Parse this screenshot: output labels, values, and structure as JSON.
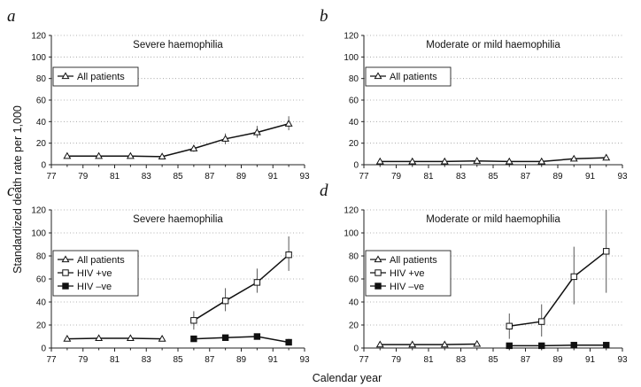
{
  "figure": {
    "ylabel": "Standardized death rate per 1,000",
    "xlabel": "Calendar year"
  },
  "chart_data": [
    {
      "panel": "a",
      "type": "line",
      "title": "Severe haemophilia",
      "xlim": [
        77,
        93
      ],
      "ylim": [
        0,
        120
      ],
      "xticks": [
        77,
        79,
        81,
        83,
        85,
        87,
        89,
        91,
        93
      ],
      "yticks": [
        0,
        20,
        40,
        60,
        80,
        100,
        120
      ],
      "grid": "horizontal dotted",
      "legend_placement": "upper-left",
      "series": [
        {
          "name": "All patients",
          "marker": "open-triangle",
          "x": [
            78,
            80,
            82,
            84,
            86,
            88,
            90,
            92
          ],
          "y": [
            8,
            8,
            8,
            7.5,
            15,
            24,
            30,
            38
          ],
          "err": [
            [
              6.5,
              9.5
            ],
            [
              6.5,
              9.5
            ],
            [
              6.5,
              9.5
            ],
            [
              6,
              9
            ],
            [
              12,
              18
            ],
            [
              19,
              29
            ],
            [
              25,
              36
            ],
            [
              32,
              45
            ]
          ]
        }
      ]
    },
    {
      "panel": "b",
      "type": "line",
      "title": "Moderate or mild haemophilia",
      "xlim": [
        77,
        93
      ],
      "ylim": [
        0,
        120
      ],
      "xticks": [
        77,
        79,
        81,
        83,
        85,
        87,
        89,
        91,
        93
      ],
      "yticks": [
        0,
        20,
        40,
        60,
        80,
        100,
        120
      ],
      "grid": "horizontal dotted",
      "legend_placement": "upper-left",
      "series": [
        {
          "name": "All patients",
          "marker": "open-triangle",
          "x": [
            78,
            80,
            82,
            84,
            86,
            88,
            90,
            92
          ],
          "y": [
            3,
            3,
            3,
            3.5,
            3,
            3,
            5.5,
            6.5
          ],
          "err": [
            [
              1.5,
              4.5
            ],
            [
              1.5,
              4.5
            ],
            [
              1.5,
              4.5
            ],
            [
              2,
              5
            ],
            [
              1.5,
              4.5
            ],
            [
              1.5,
              4.5
            ],
            [
              3.5,
              8
            ],
            [
              4,
              9.5
            ]
          ]
        }
      ]
    },
    {
      "panel": "c",
      "type": "line",
      "title": "Severe haemophilia",
      "xlim": [
        77,
        93
      ],
      "ylim": [
        0,
        120
      ],
      "xticks": [
        77,
        79,
        81,
        83,
        85,
        87,
        89,
        91,
        93
      ],
      "yticks": [
        0,
        20,
        40,
        60,
        80,
        100,
        120
      ],
      "grid": "horizontal dotted",
      "legend_placement": "middle-left",
      "series": [
        {
          "name": "All patients",
          "marker": "open-triangle",
          "x": [
            78,
            80,
            82,
            84
          ],
          "y": [
            8,
            8.5,
            8.5,
            8
          ],
          "err": [
            [
              6.5,
              9.5
            ],
            [
              7,
              10
            ],
            [
              7,
              10
            ],
            [
              6.5,
              9.5
            ]
          ]
        },
        {
          "name": "HIV +ve",
          "marker": "open-square",
          "x": [
            86,
            88,
            90,
            92
          ],
          "y": [
            24,
            41,
            57,
            81
          ],
          "err": [
            [
              16,
              32
            ],
            [
              32,
              52
            ],
            [
              48,
              69
            ],
            [
              67,
              97
            ]
          ]
        },
        {
          "name": "HIV –ve",
          "marker": "filled-square",
          "x": [
            86,
            88,
            90,
            92
          ],
          "y": [
            8,
            9,
            10,
            5
          ],
          "err": [
            [
              6,
              10
            ],
            [
              7,
              11
            ],
            [
              8,
              12
            ],
            [
              3,
              8
            ]
          ]
        }
      ]
    },
    {
      "panel": "d",
      "type": "line",
      "title": "Moderate or mild haemophilia",
      "xlim": [
        77,
        93
      ],
      "ylim": [
        0,
        120
      ],
      "xticks": [
        77,
        79,
        81,
        83,
        85,
        87,
        89,
        91,
        93
      ],
      "yticks": [
        0,
        20,
        40,
        60,
        80,
        100,
        120
      ],
      "grid": "horizontal dotted",
      "legend_placement": "middle-left",
      "series": [
        {
          "name": "All patients",
          "marker": "open-triangle",
          "x": [
            78,
            80,
            82,
            84
          ],
          "y": [
            3,
            3,
            3,
            3.5
          ],
          "err": [
            [
              1.5,
              4.5
            ],
            [
              1.5,
              4.5
            ],
            [
              1.5,
              4.5
            ],
            [
              2,
              5
            ]
          ]
        },
        {
          "name": "HIV +ve",
          "marker": "open-square",
          "x": [
            86,
            88,
            90,
            92
          ],
          "y": [
            19,
            23,
            62,
            84
          ],
          "err": [
            [
              8,
              30
            ],
            [
              10,
              38
            ],
            [
              38,
              88
            ],
            [
              48,
              120
            ]
          ]
        },
        {
          "name": "HIV –ve",
          "marker": "filled-square",
          "x": [
            86,
            88,
            90,
            92
          ],
          "y": [
            2,
            2,
            2.5,
            2.5
          ],
          "err": [
            [
              1,
              3
            ],
            [
              1,
              3
            ],
            [
              1.5,
              3.5
            ],
            [
              1.5,
              3.5
            ]
          ]
        }
      ]
    }
  ]
}
